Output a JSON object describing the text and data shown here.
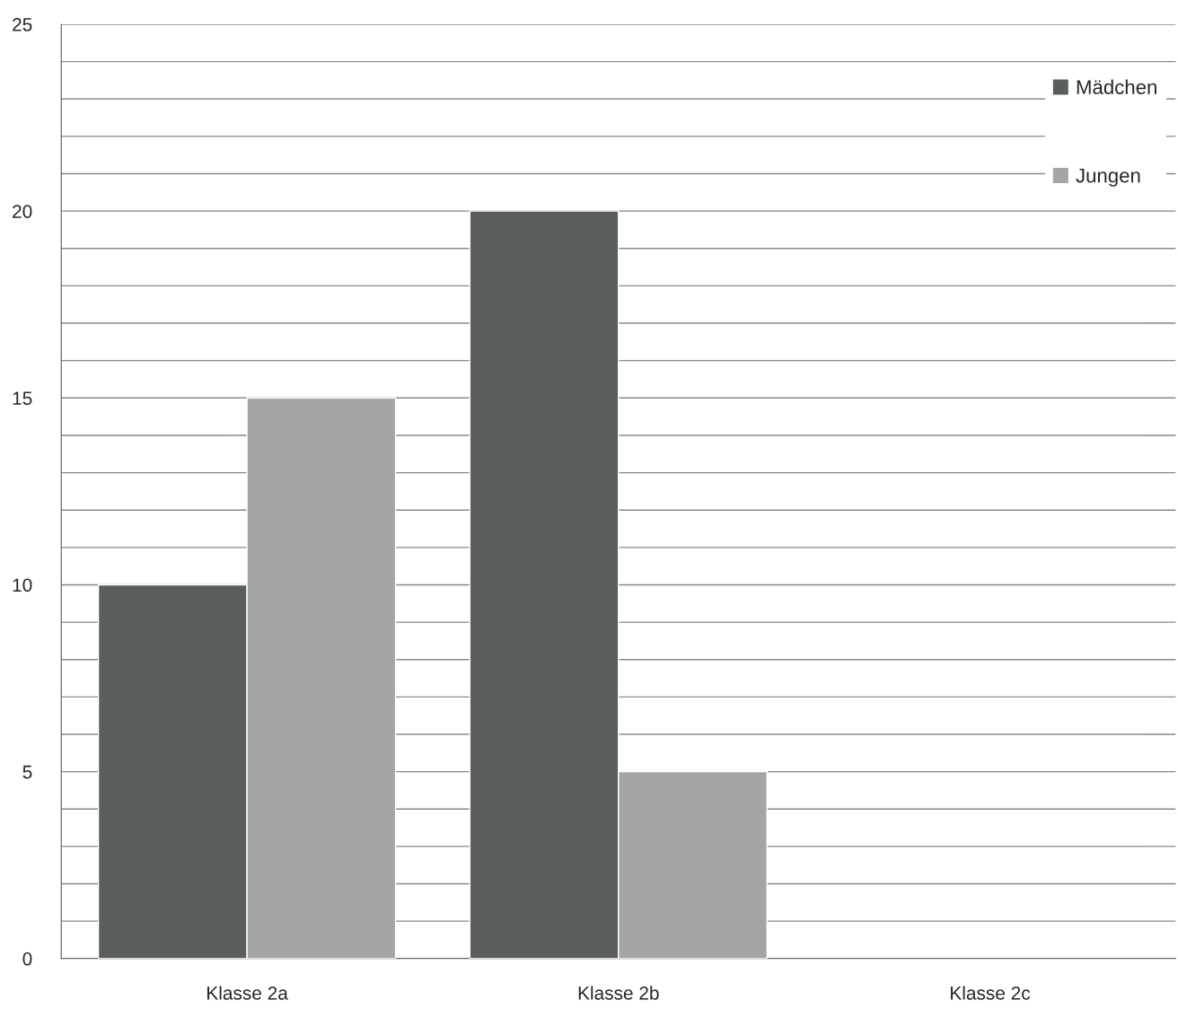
{
  "chart_data": {
    "type": "bar",
    "categories": [
      "Klasse 2a",
      "Klasse 2b",
      "Klasse 2c"
    ],
    "series": [
      {
        "name": "Mädchen",
        "color": "#5a5d5e",
        "values": [
          10,
          20,
          null
        ]
      },
      {
        "name": "Jungen",
        "color": "#a3a5a6",
        "values": [
          15,
          5,
          null
        ]
      }
    ],
    "ylim": [
      0,
      25
    ],
    "yticks": [
      0,
      {
        "value": 1,
        "label": null
      },
      {
        "value": 2,
        "label": null
      },
      {
        "value": 3,
        "label": null
      },
      {
        "value": 4,
        "label": null
      },
      5,
      {
        "value": 6,
        "label": null
      },
      {
        "value": 7,
        "label": null
      },
      {
        "value": 8,
        "label": null
      },
      {
        "value": 9,
        "label": null
      },
      10,
      {
        "value": 11,
        "label": null
      },
      {
        "value": 12,
        "label": null
      },
      {
        "value": 13,
        "label": null
      },
      {
        "value": 14,
        "label": null
      },
      15,
      {
        "value": 16,
        "label": null
      },
      {
        "value": 17,
        "label": null
      },
      {
        "value": 18,
        "label": null
      },
      {
        "value": 19,
        "label": null
      },
      20,
      {
        "value": 21,
        "label": null
      },
      {
        "value": 22,
        "label": null
      },
      {
        "value": 23,
        "label": null
      },
      {
        "value": 24,
        "label": null
      },
      25
    ],
    "grid": "y",
    "legend": "top right"
  }
}
